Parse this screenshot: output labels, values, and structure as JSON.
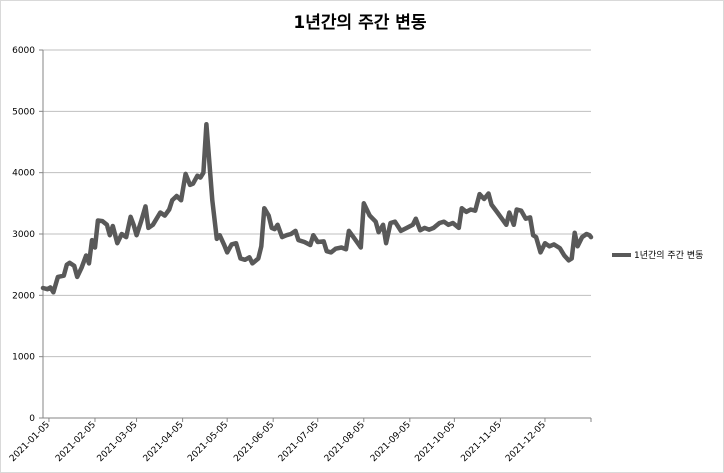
{
  "chart_data": {
    "type": "line",
    "title": "1년간의 주간 변동",
    "xlabel": "",
    "ylabel": "",
    "ylim": [
      0,
      6000
    ],
    "yticks": [
      0,
      1000,
      2000,
      3000,
      4000,
      5000,
      6000
    ],
    "x_tick_labels": [
      "2021-01-05",
      "2021-02-05",
      "2021-03-05",
      "2021-04-05",
      "2021-05-05",
      "2021-06-05",
      "2021-07-05",
      "2021-08-05",
      "2021-09-05",
      "2021-10-05",
      "2021-11-05",
      "2021-12-05"
    ],
    "grid": "horizontal",
    "legend_position": "right",
    "series": [
      {
        "name": "1년간의 주간 변동",
        "color": "#595959",
        "points": [
          [
            "2021-01-01",
            2120
          ],
          [
            "2021-01-04",
            2100
          ],
          [
            "2021-01-06",
            2130
          ],
          [
            "2021-01-08",
            2050
          ],
          [
            "2021-01-11",
            2300
          ],
          [
            "2021-01-15",
            2320
          ],
          [
            "2021-01-17",
            2500
          ],
          [
            "2021-01-19",
            2530
          ],
          [
            "2021-01-22",
            2480
          ],
          [
            "2021-01-24",
            2300
          ],
          [
            "2021-01-27",
            2450
          ],
          [
            "2021-01-30",
            2650
          ],
          [
            "2021-02-01",
            2520
          ],
          [
            "2021-02-03",
            2900
          ],
          [
            "2021-02-05",
            2780
          ],
          [
            "2021-02-07",
            3220
          ],
          [
            "2021-02-10",
            3210
          ],
          [
            "2021-02-13",
            3150
          ],
          [
            "2021-02-15",
            2980
          ],
          [
            "2021-02-17",
            3130
          ],
          [
            "2021-02-20",
            2850
          ],
          [
            "2021-02-23",
            3000
          ],
          [
            "2021-02-26",
            2950
          ],
          [
            "2021-03-01",
            3280
          ],
          [
            "2021-03-03",
            3150
          ],
          [
            "2021-03-05",
            2980
          ],
          [
            "2021-03-08",
            3200
          ],
          [
            "2021-03-11",
            3450
          ],
          [
            "2021-03-13",
            3100
          ],
          [
            "2021-03-16",
            3150
          ],
          [
            "2021-03-21",
            3350
          ],
          [
            "2021-03-24",
            3300
          ],
          [
            "2021-03-27",
            3400
          ],
          [
            "2021-03-29",
            3550
          ],
          [
            "2021-04-01",
            3620
          ],
          [
            "2021-04-04",
            3550
          ],
          [
            "2021-04-07",
            3980
          ],
          [
            "2021-04-10",
            3800
          ],
          [
            "2021-04-12",
            3820
          ],
          [
            "2021-04-15",
            3950
          ],
          [
            "2021-04-17",
            3920
          ],
          [
            "2021-04-19",
            4000
          ],
          [
            "2021-04-21",
            4790
          ],
          [
            "2021-04-25",
            3550
          ],
          [
            "2021-04-28",
            2920
          ],
          [
            "2021-04-30",
            2980
          ],
          [
            "2021-05-03",
            2820
          ],
          [
            "2021-05-05",
            2700
          ],
          [
            "2021-05-08",
            2830
          ],
          [
            "2021-05-11",
            2850
          ],
          [
            "2021-05-14",
            2600
          ],
          [
            "2021-05-17",
            2580
          ],
          [
            "2021-05-20",
            2620
          ],
          [
            "2021-05-22",
            2520
          ],
          [
            "2021-05-26",
            2600
          ],
          [
            "2021-05-28",
            2800
          ],
          [
            "2021-05-30",
            3420
          ],
          [
            "2021-06-02",
            3300
          ],
          [
            "2021-06-04",
            3100
          ],
          [
            "2021-06-06",
            3080
          ],
          [
            "2021-06-08",
            3150
          ],
          [
            "2021-06-11",
            2950
          ],
          [
            "2021-06-14",
            2980
          ],
          [
            "2021-06-17",
            3000
          ],
          [
            "2021-06-20",
            3050
          ],
          [
            "2021-06-22",
            2900
          ],
          [
            "2021-06-26",
            2870
          ],
          [
            "2021-06-30",
            2820
          ],
          [
            "2021-07-02",
            2980
          ],
          [
            "2021-07-05",
            2870
          ],
          [
            "2021-07-09",
            2880
          ],
          [
            "2021-07-11",
            2720
          ],
          [
            "2021-07-14",
            2700
          ],
          [
            "2021-07-17",
            2760
          ],
          [
            "2021-07-21",
            2780
          ],
          [
            "2021-07-24",
            2750
          ],
          [
            "2021-07-26",
            3050
          ],
          [
            "2021-07-29",
            2950
          ],
          [
            "2021-08-01",
            2850
          ],
          [
            "2021-08-03",
            2780
          ],
          [
            "2021-08-05",
            3500
          ],
          [
            "2021-08-09",
            3300
          ],
          [
            "2021-08-13",
            3200
          ],
          [
            "2021-08-15",
            3030
          ],
          [
            "2021-08-18",
            3150
          ],
          [
            "2021-08-20",
            2850
          ],
          [
            "2021-08-23",
            3180
          ],
          [
            "2021-08-26",
            3200
          ],
          [
            "2021-08-30",
            3050
          ],
          [
            "2021-09-03",
            3100
          ],
          [
            "2021-09-07",
            3150
          ],
          [
            "2021-09-09",
            3250
          ],
          [
            "2021-09-12",
            3060
          ],
          [
            "2021-09-15",
            3100
          ],
          [
            "2021-09-18",
            3070
          ],
          [
            "2021-09-21",
            3100
          ],
          [
            "2021-09-25",
            3180
          ],
          [
            "2021-09-28",
            3200
          ],
          [
            "2021-10-01",
            3150
          ],
          [
            "2021-10-04",
            3180
          ],
          [
            "2021-10-08",
            3100
          ],
          [
            "2021-10-10",
            3420
          ],
          [
            "2021-10-13",
            3360
          ],
          [
            "2021-10-16",
            3400
          ],
          [
            "2021-10-19",
            3380
          ],
          [
            "2021-10-22",
            3650
          ],
          [
            "2021-10-25",
            3570
          ],
          [
            "2021-10-28",
            3660
          ],
          [
            "2021-10-30",
            3480
          ],
          [
            "2021-11-03",
            3350
          ],
          [
            "2021-11-06",
            3250
          ],
          [
            "2021-11-09",
            3150
          ],
          [
            "2021-11-11",
            3350
          ],
          [
            "2021-11-14",
            3150
          ],
          [
            "2021-11-16",
            3400
          ],
          [
            "2021-11-19",
            3380
          ],
          [
            "2021-11-22",
            3250
          ],
          [
            "2021-11-25",
            3270
          ],
          [
            "2021-11-27",
            2980
          ],
          [
            "2021-11-29",
            2950
          ],
          [
            "2021-12-02",
            2700
          ],
          [
            "2021-12-05",
            2850
          ],
          [
            "2021-12-08",
            2800
          ],
          [
            "2021-12-11",
            2830
          ],
          [
            "2021-12-15",
            2770
          ],
          [
            "2021-12-18",
            2650
          ],
          [
            "2021-12-21",
            2570
          ],
          [
            "2021-12-23",
            2600
          ],
          [
            "2021-12-25",
            3020
          ],
          [
            "2021-12-27",
            2800
          ],
          [
            "2021-12-30",
            2950
          ],
          [
            "2022-01-02",
            3000
          ],
          [
            "2022-01-04",
            2980
          ],
          [
            "2022-01-05",
            2950
          ]
        ]
      }
    ]
  }
}
